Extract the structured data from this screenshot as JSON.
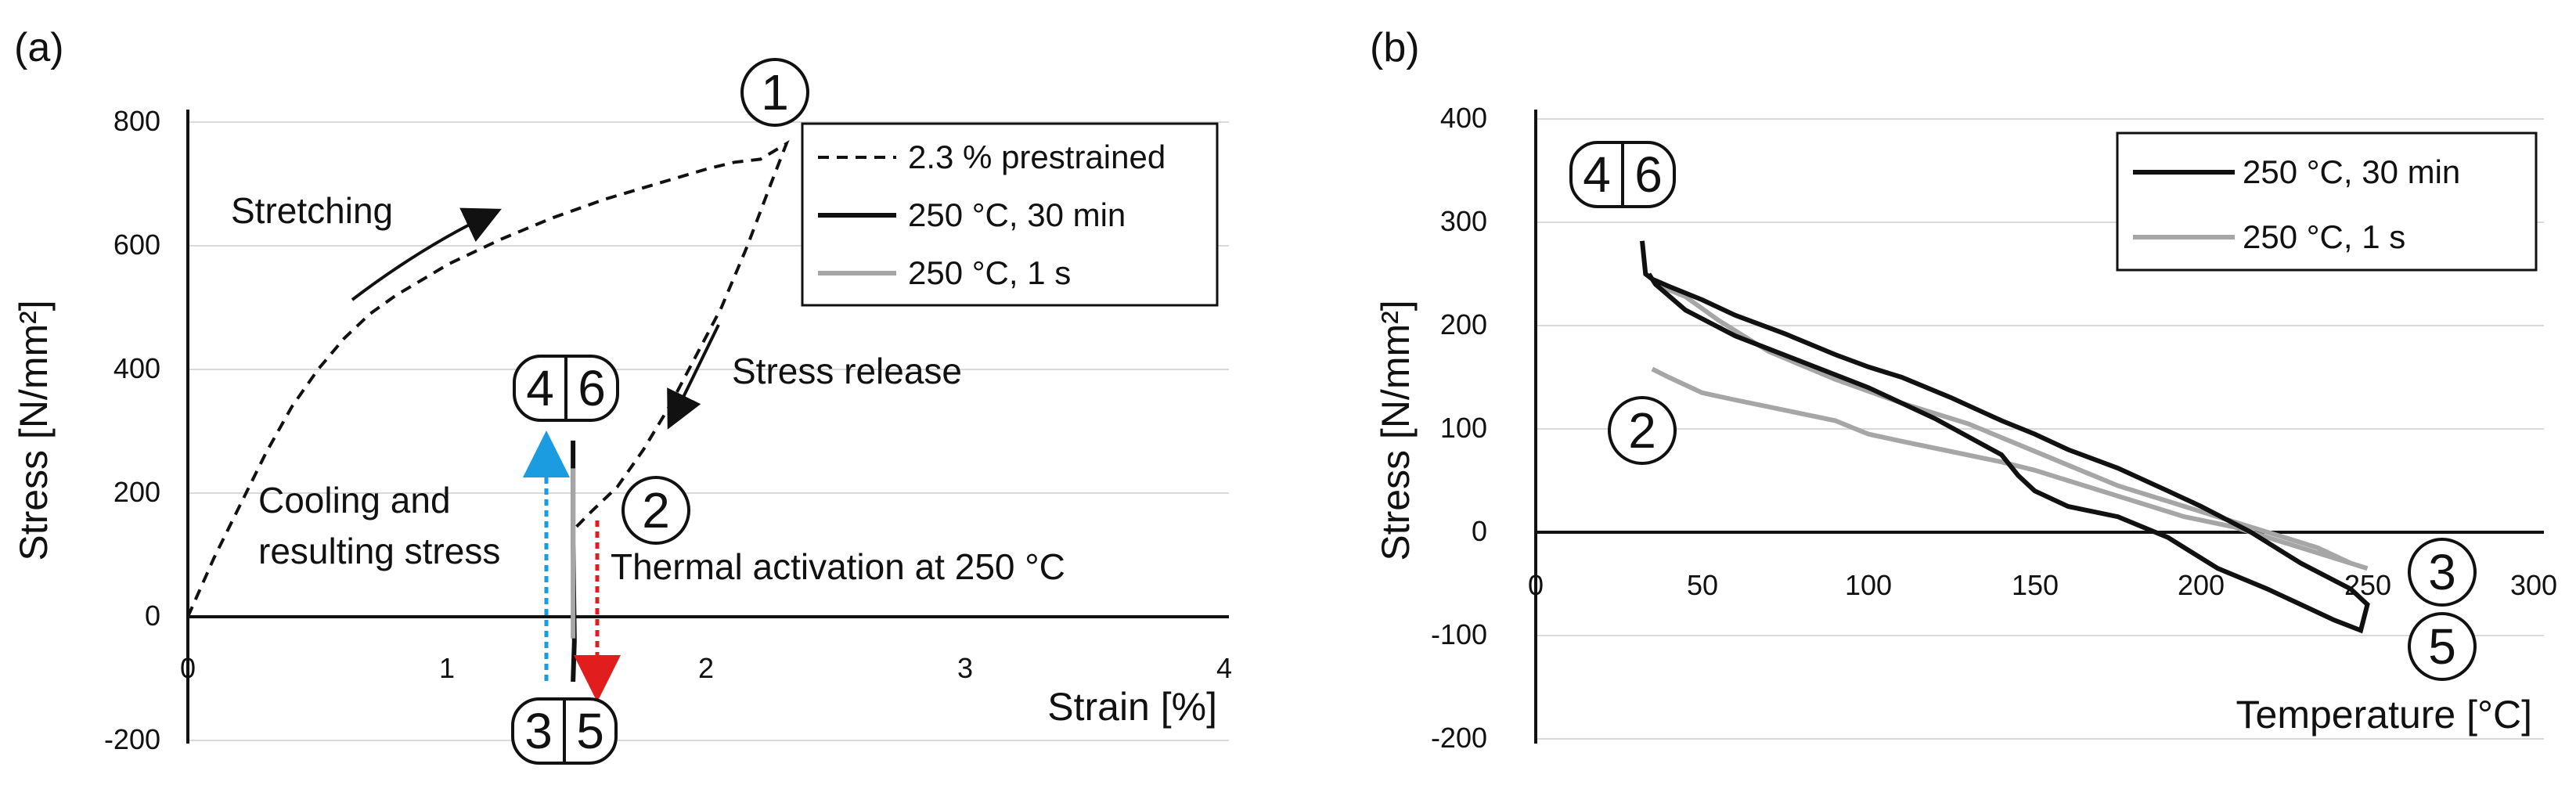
{
  "colors": {
    "black_series": "#111111",
    "gray_series": "#a6a6a6",
    "grid": "#d9d9d9",
    "blue_arrow": "#1b9be0",
    "red_arrow": "#e11d1d"
  },
  "panels": {
    "a": {
      "label": "(a)",
      "annotations": {
        "stretching": "Stretching",
        "stress_release": "Stress release",
        "cooling_line1": "Cooling and",
        "cooling_line2": "resulting stress",
        "thermal": "Thermal activation at 250 °C"
      },
      "markers": {
        "m1": "1",
        "m2": "2",
        "m4": "4",
        "m6": "6",
        "m3": "3",
        "m5": "5"
      }
    },
    "b": {
      "label": "(b)",
      "markers": {
        "m2": "2",
        "m4": "4",
        "m6": "6",
        "m3": "3",
        "m5": "5"
      }
    }
  },
  "chart_data": [
    {
      "type": "line",
      "id": "a",
      "title": "",
      "xlabel": "Strain [%]",
      "ylabel": "Stress [N/mm²]",
      "xlim": [
        0,
        4
      ],
      "ylim": [
        -200,
        800
      ],
      "xticks": [
        0,
        1,
        2,
        3,
        4
      ],
      "yticks": [
        -200,
        0,
        200,
        400,
        600,
        800
      ],
      "grid": "horizontal",
      "legend_position": "top-right",
      "series": [
        {
          "name": "2.3 % prestrained",
          "style": "dashed",
          "color": "#111111",
          "x": [
            0,
            0.1,
            0.2,
            0.3,
            0.4,
            0.5,
            0.6,
            0.7,
            0.8,
            0.9,
            1.0,
            1.2,
            1.4,
            1.6,
            1.8,
            2.0,
            2.1,
            2.2,
            2.3,
            2.24,
            2.15,
            2.05,
            1.95,
            1.85,
            1.75,
            1.65,
            1.55,
            1.48
          ],
          "y": [
            0,
            95,
            180,
            265,
            340,
            400,
            450,
            490,
            520,
            545,
            570,
            610,
            645,
            675,
            700,
            725,
            735,
            740,
            765,
            700,
            600,
            500,
            420,
            340,
            270,
            210,
            170,
            140
          ]
        },
        {
          "name": "250 °C, 30 min",
          "style": "solid",
          "color": "#111111",
          "x": [
            1.48,
            1.48,
            1.485,
            1.48
          ],
          "y": [
            285,
            120,
            -40,
            -105
          ]
        },
        {
          "name": "250 °C, 1 s",
          "style": "solid",
          "color": "#a6a6a6",
          "x": [
            1.48,
            1.48
          ],
          "y": [
            240,
            -35
          ]
        }
      ]
    },
    {
      "type": "line",
      "id": "b",
      "title": "",
      "xlabel": "Temperature [°C]",
      "ylabel": "Stress [N/mm²]",
      "xlim": [
        0,
        300
      ],
      "ylim": [
        -200,
        400
      ],
      "xticks": [
        0,
        50,
        100,
        150,
        200,
        250,
        300
      ],
      "yticks": [
        -200,
        -100,
        0,
        100,
        200,
        300,
        400
      ],
      "grid": "horizontal",
      "legend_position": "top-right",
      "series": [
        {
          "name": "250 °C, 30 min",
          "color": "#111111",
          "x": [
            32,
            33,
            35,
            40,
            50,
            60,
            75,
            90,
            100,
            110,
            125,
            140,
            150,
            160,
            175,
            190,
            200,
            215,
            230,
            245,
            250,
            248,
            240,
            230,
            220,
            205,
            190,
            175,
            160,
            150,
            145,
            140,
            120,
            100,
            80,
            60,
            45,
            36,
            34
          ],
          "y": [
            282,
            250,
            245,
            238,
            225,
            210,
            192,
            172,
            160,
            150,
            130,
            108,
            95,
            80,
            62,
            40,
            25,
            0,
            -30,
            -55,
            -70,
            -95,
            -85,
            -70,
            -55,
            -35,
            -5,
            15,
            25,
            40,
            55,
            75,
            110,
            140,
            165,
            190,
            215,
            240,
            250
          ]
        },
        {
          "name": "250 °C, 1 s",
          "color": "#a6a6a6",
          "x": [
            35,
            40,
            50,
            60,
            75,
            90,
            100,
            110,
            125,
            140,
            150,
            165,
            180,
            195,
            210,
            225,
            240,
            250,
            245,
            235,
            220,
            205,
            190,
            175,
            160,
            145,
            130,
            110,
            90,
            70,
            55,
            45,
            36
          ],
          "y": [
            158,
            150,
            135,
            128,
            118,
            108,
            95,
            88,
            78,
            68,
            60,
            45,
            30,
            15,
            5,
            -10,
            -25,
            -35,
            -30,
            -15,
            0,
            15,
            30,
            45,
            65,
            85,
            105,
            125,
            148,
            175,
            205,
            228,
            240
          ]
        }
      ]
    }
  ]
}
